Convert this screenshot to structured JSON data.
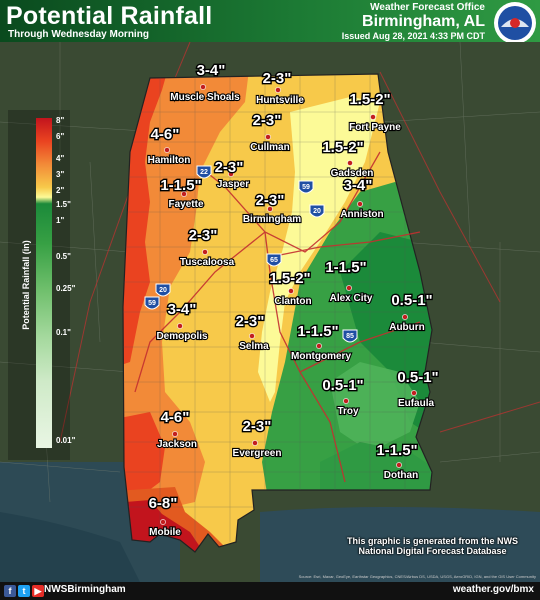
{
  "header": {
    "title": "Potential Rainfall",
    "subtitle": "Through Wednesday Morning",
    "office": "Weather Forecast Office",
    "city": "Birmingham, AL",
    "issued": "Issued Aug 28, 2021 4:33 PM CDT"
  },
  "legend": {
    "title": "Potential Rainfall (in)",
    "ticks": [
      "8\"",
      "6\"",
      "4\"",
      "3\"",
      "2\"",
      "1.5\"",
      "1\"",
      "0.5\"",
      "0.25\"",
      "0.1\"",
      "0.01\""
    ]
  },
  "rainfall_labels": [
    "3-4\"",
    "2-3\"",
    "1.5-2\"",
    "2-3\"",
    "4-6\"",
    "1.5-2\"",
    "2-3\"",
    "1-1.5\"",
    "3-4\"",
    "2-3\"",
    "2-3\"",
    "1.5-2\"",
    "1-1.5\"",
    "0.5-1\"",
    "3-4\"",
    "2-3\"",
    "1-1.5\"",
    "0.5-1\"",
    "0.5-1\"",
    "4-6\"",
    "2-3\"",
    "1-1.5\"",
    "6-8\""
  ],
  "cities": [
    "Muscle Shoals",
    "Huntsville",
    "Fort Payne",
    "Cullman",
    "Hamilton",
    "Gadsden",
    "Jasper",
    "Fayette",
    "Anniston",
    "Birmingham",
    "Tuscaloosa",
    "Clanton",
    "Alex City",
    "Auburn",
    "Demopolis",
    "Selma",
    "Montgomery",
    "Troy",
    "Eufaula",
    "Jackson",
    "Evergreen",
    "Dothan",
    "Mobile"
  ],
  "interstates": [
    "22",
    "59",
    "20",
    "65",
    "59",
    "20",
    "85"
  ],
  "note": {
    "line1": "This graphic is generated from the NWS",
    "line2": "National Digital Forecast Database"
  },
  "source": "Source: Esri, Maxar, GeoEye, Earthstar Geographics, CNES/Airbus DS, USDA, USGS, AeroGRID, IGN, and the GIS User Community",
  "footer": {
    "handle": "NWSBirmingham",
    "website": "weather.gov/bmx",
    "icons": [
      "facebook-icon",
      "twitter-icon",
      "youtube-icon"
    ]
  },
  "colors": {
    "header_green": "#1c7a34",
    "heavy": "#c2141d",
    "orange": "#f28a38",
    "yellow": "#fcfa97",
    "green": "#37a044"
  }
}
